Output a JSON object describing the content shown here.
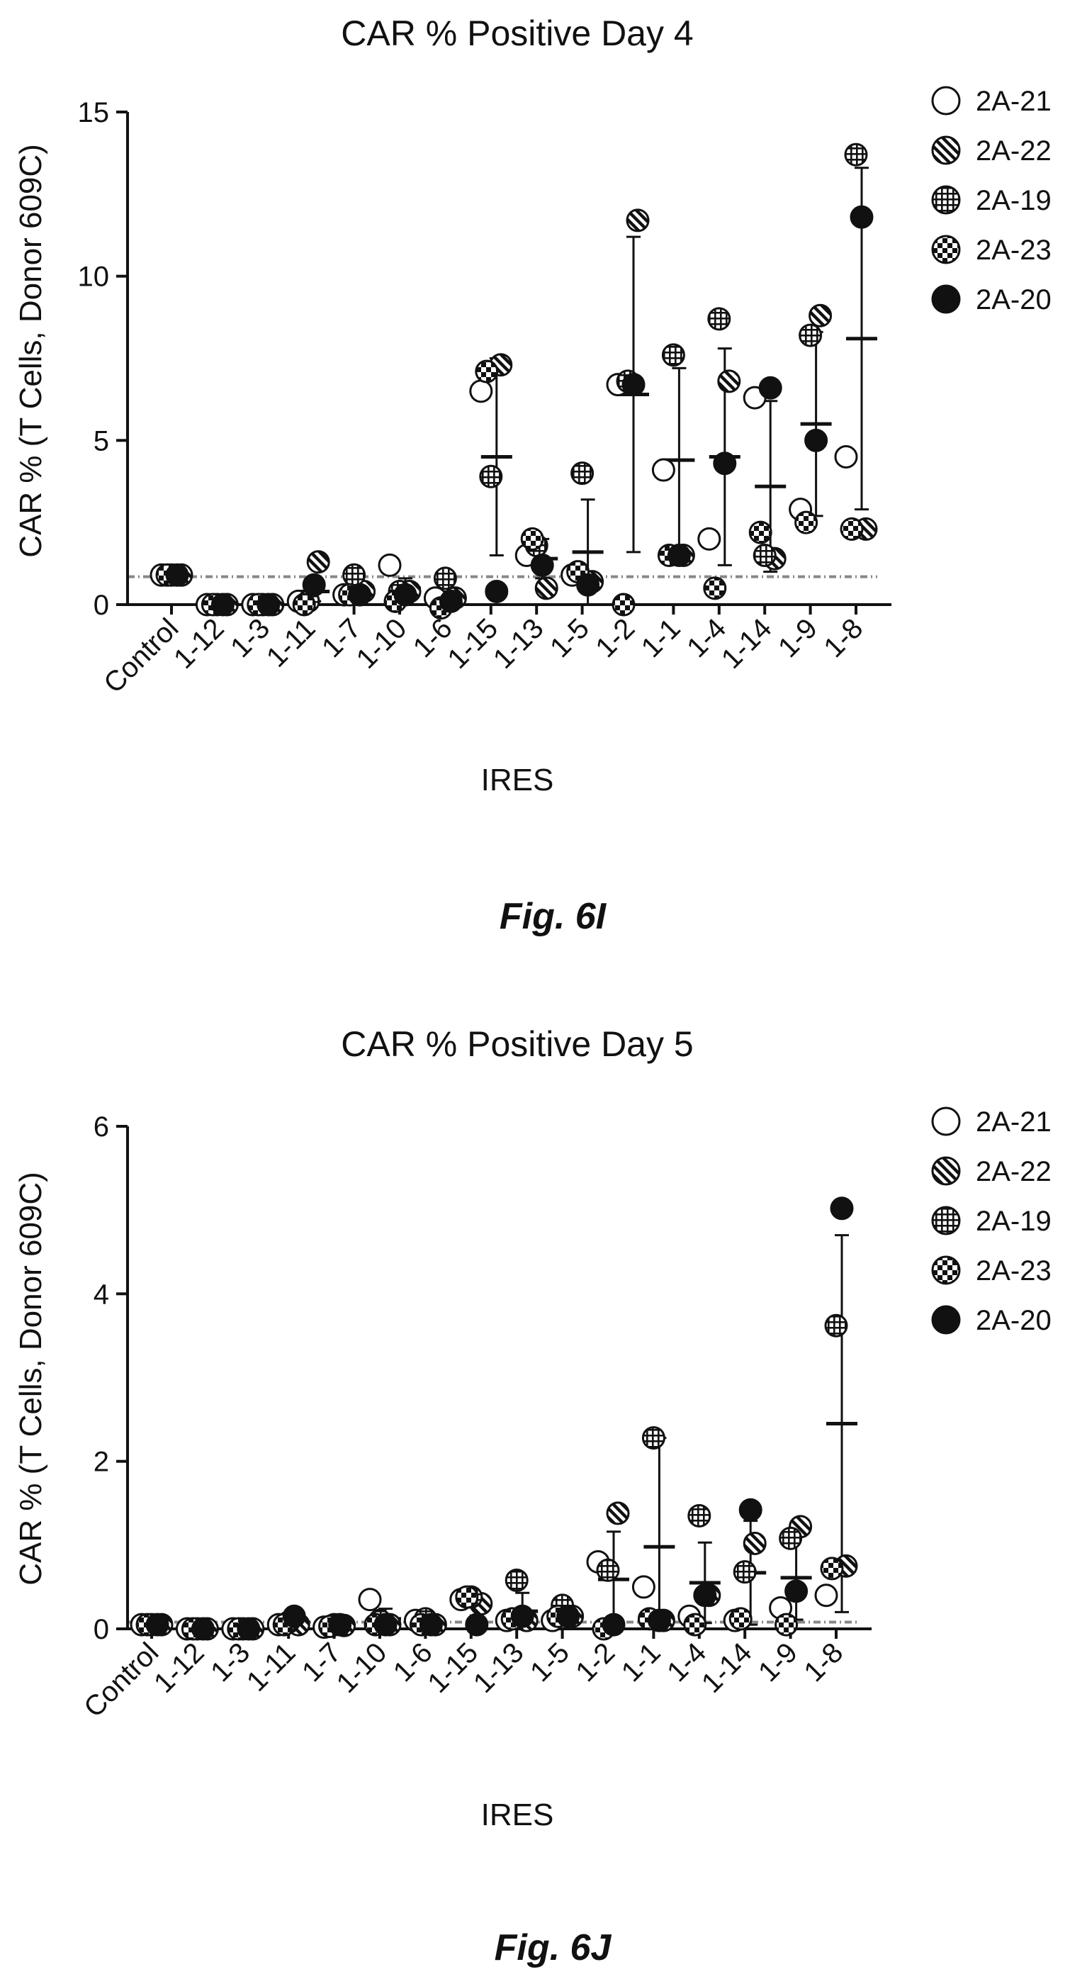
{
  "chart_data": [
    {
      "type": "scatter",
      "title": "CAR % Positive Day 4",
      "xlabel": "IRES",
      "ylabel": "CAR % (T Cells, Donor 609C)",
      "figure_label": "Fig. 6I",
      "ylim": [
        0,
        15
      ],
      "yticks": [
        "0",
        "5",
        "10",
        "15"
      ],
      "categories": [
        "Control",
        "1-12",
        "1-3",
        "1-11",
        "1-7",
        "1-10",
        "1-6",
        "1-15",
        "1-13",
        "1-5",
        "1-2",
        "1-1",
        "1-4",
        "1-14",
        "1-9",
        "1-8"
      ],
      "reference_line": 0.85,
      "legend_position": "right",
      "series": [
        {
          "name": "2A-21",
          "pattern": "open",
          "values": [
            0.9,
            0,
            0,
            0.1,
            0.3,
            1.2,
            0.2,
            6.5,
            1.5,
            0.9,
            6.7,
            4.1,
            2.0,
            6.3,
            2.9,
            4.5
          ]
        },
        {
          "name": "2A-22",
          "pattern": "hatch",
          "values": [
            0.9,
            0,
            0,
            1.3,
            0.4,
            0.4,
            0.2,
            7.3,
            0.5,
            0.7,
            11.7,
            1.5,
            6.8,
            1.4,
            8.8,
            2.3
          ]
        },
        {
          "name": "2A-19",
          "pattern": "grid",
          "values": [
            0.9,
            0,
            0,
            0.1,
            0.9,
            0.4,
            0.8,
            3.9,
            1.8,
            4.0,
            6.8,
            7.6,
            8.7,
            1.5,
            8.2,
            13.7
          ]
        },
        {
          "name": "2A-23",
          "pattern": "checker",
          "values": [
            0.9,
            0,
            0,
            0,
            0.3,
            0.1,
            -0.1,
            7.1,
            2.0,
            1.0,
            0,
            1.5,
            0.5,
            2.2,
            2.5,
            2.3
          ]
        },
        {
          "name": "2A-20",
          "pattern": "solid",
          "values": [
            0.9,
            0,
            0,
            0.6,
            0.3,
            0.3,
            0.1,
            0.4,
            1.2,
            0.6,
            6.7,
            1.5,
            4.3,
            6.6,
            5.0,
            11.8
          ]
        }
      ],
      "means": [
        0.9,
        0,
        0,
        0.4,
        0.4,
        0.5,
        0.2,
        4.5,
        1.4,
        1.6,
        6.4,
        4.4,
        4.5,
        3.6,
        5.5,
        8.1
      ],
      "sd": [
        0,
        0,
        0,
        0.3,
        0.2,
        0.3,
        0.2,
        3.0,
        0.6,
        1.6,
        4.8,
        2.8,
        3.3,
        2.6,
        2.8,
        5.2
      ]
    },
    {
      "type": "scatter",
      "title": "CAR % Positive Day 5",
      "xlabel": "IRES",
      "ylabel": "CAR % (T Cells, Donor 609C)",
      "figure_label": "Fig. 6J",
      "ylim": [
        0,
        6
      ],
      "yticks": [
        "0",
        "2",
        "4",
        "6"
      ],
      "categories": [
        "Control",
        "1-12",
        "1-3",
        "1-11",
        "1-7",
        "1-10",
        "1-6",
        "1-15",
        "1-13",
        "1-5",
        "1-2",
        "1-1",
        "1-4",
        "1-14",
        "1-9",
        "1-8"
      ],
      "reference_line": 0.08,
      "legend_position": "right",
      "series": [
        {
          "name": "2A-21",
          "pattern": "open",
          "values": [
            0.05,
            0,
            0,
            0.05,
            0.02,
            0.35,
            0.1,
            0.35,
            0.1,
            0.1,
            0.8,
            0.5,
            0.15,
            0.1,
            0.25,
            0.4
          ]
        },
        {
          "name": "2A-22",
          "pattern": "hatch",
          "values": [
            0.05,
            0,
            0,
            0.05,
            0.04,
            0.05,
            0.05,
            0.3,
            0.1,
            0.15,
            1.38,
            0.1,
            0.4,
            1.02,
            1.22,
            0.75
          ]
        },
        {
          "name": "2A-19",
          "pattern": "grid",
          "values": [
            0.05,
            0,
            0,
            0.08,
            0.05,
            0.1,
            0.12,
            0.38,
            0.58,
            0.28,
            0.7,
            2.28,
            1.35,
            0.68,
            1.08,
            3.62
          ]
        },
        {
          "name": "2A-23",
          "pattern": "checker",
          "values": [
            0.05,
            0,
            0,
            0.05,
            0.03,
            0.05,
            0.05,
            0.38,
            0.12,
            0.15,
            0,
            0.12,
            0.05,
            0.12,
            0.05,
            0.72
          ]
        },
        {
          "name": "2A-20",
          "pattern": "solid",
          "values": [
            0.05,
            0,
            0,
            0.15,
            0.05,
            0.05,
            0.05,
            0.05,
            0.15,
            0.15,
            0.05,
            0.1,
            0.4,
            1.42,
            0.45,
            5.02
          ]
        }
      ],
      "means": [
        0.05,
        0,
        0,
        0.08,
        0.04,
        0.12,
        0.07,
        0.29,
        0.21,
        0.17,
        0.59,
        0.98,
        0.55,
        0.67,
        0.61,
        2.45
      ],
      "sd": [
        0,
        0,
        0,
        0.05,
        0.02,
        0.12,
        0.04,
        0.13,
        0.22,
        0.07,
        0.57,
        1.3,
        0.48,
        0.62,
        0.5,
        2.25
      ]
    }
  ]
}
